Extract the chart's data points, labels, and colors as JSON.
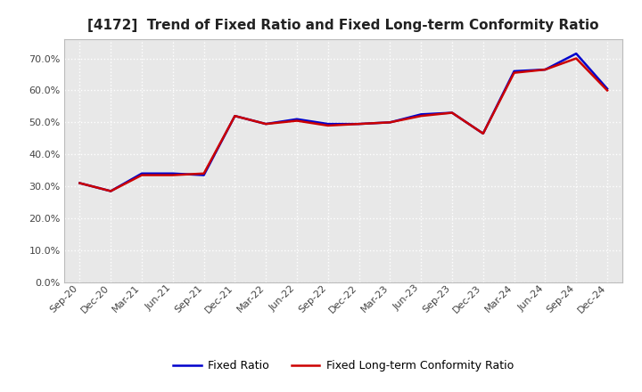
{
  "title": "[4172]  Trend of Fixed Ratio and Fixed Long-term Conformity Ratio",
  "x_labels": [
    "Sep-20",
    "Dec-20",
    "Mar-21",
    "Jun-21",
    "Sep-21",
    "Dec-21",
    "Mar-22",
    "Jun-22",
    "Sep-22",
    "Dec-22",
    "Mar-23",
    "Jun-23",
    "Sep-23",
    "Dec-23",
    "Mar-24",
    "Jun-24",
    "Sep-24",
    "Dec-24"
  ],
  "fixed_ratio": [
    0.31,
    0.285,
    0.34,
    0.34,
    0.335,
    0.52,
    0.495,
    0.51,
    0.495,
    0.495,
    0.5,
    0.525,
    0.53,
    0.465,
    0.66,
    0.665,
    0.715,
    0.605
  ],
  "fixed_lt_ratio": [
    0.31,
    0.285,
    0.335,
    0.335,
    0.34,
    0.52,
    0.495,
    0.505,
    0.49,
    0.495,
    0.5,
    0.52,
    0.53,
    0.465,
    0.655,
    0.665,
    0.7,
    0.6
  ],
  "fixed_ratio_color": "#0000cc",
  "fixed_lt_ratio_color": "#cc0000",
  "ylim": [
    0.0,
    0.76
  ],
  "yticks": [
    0.0,
    0.1,
    0.2,
    0.3,
    0.4,
    0.5,
    0.6,
    0.7
  ],
  "background_color": "#ffffff",
  "plot_bg_color": "#e8e8e8",
  "grid_color": "#ffffff",
  "title_fontsize": 11,
  "legend_fixed_ratio": "Fixed Ratio",
  "legend_fixed_lt_ratio": "Fixed Long-term Conformity Ratio"
}
